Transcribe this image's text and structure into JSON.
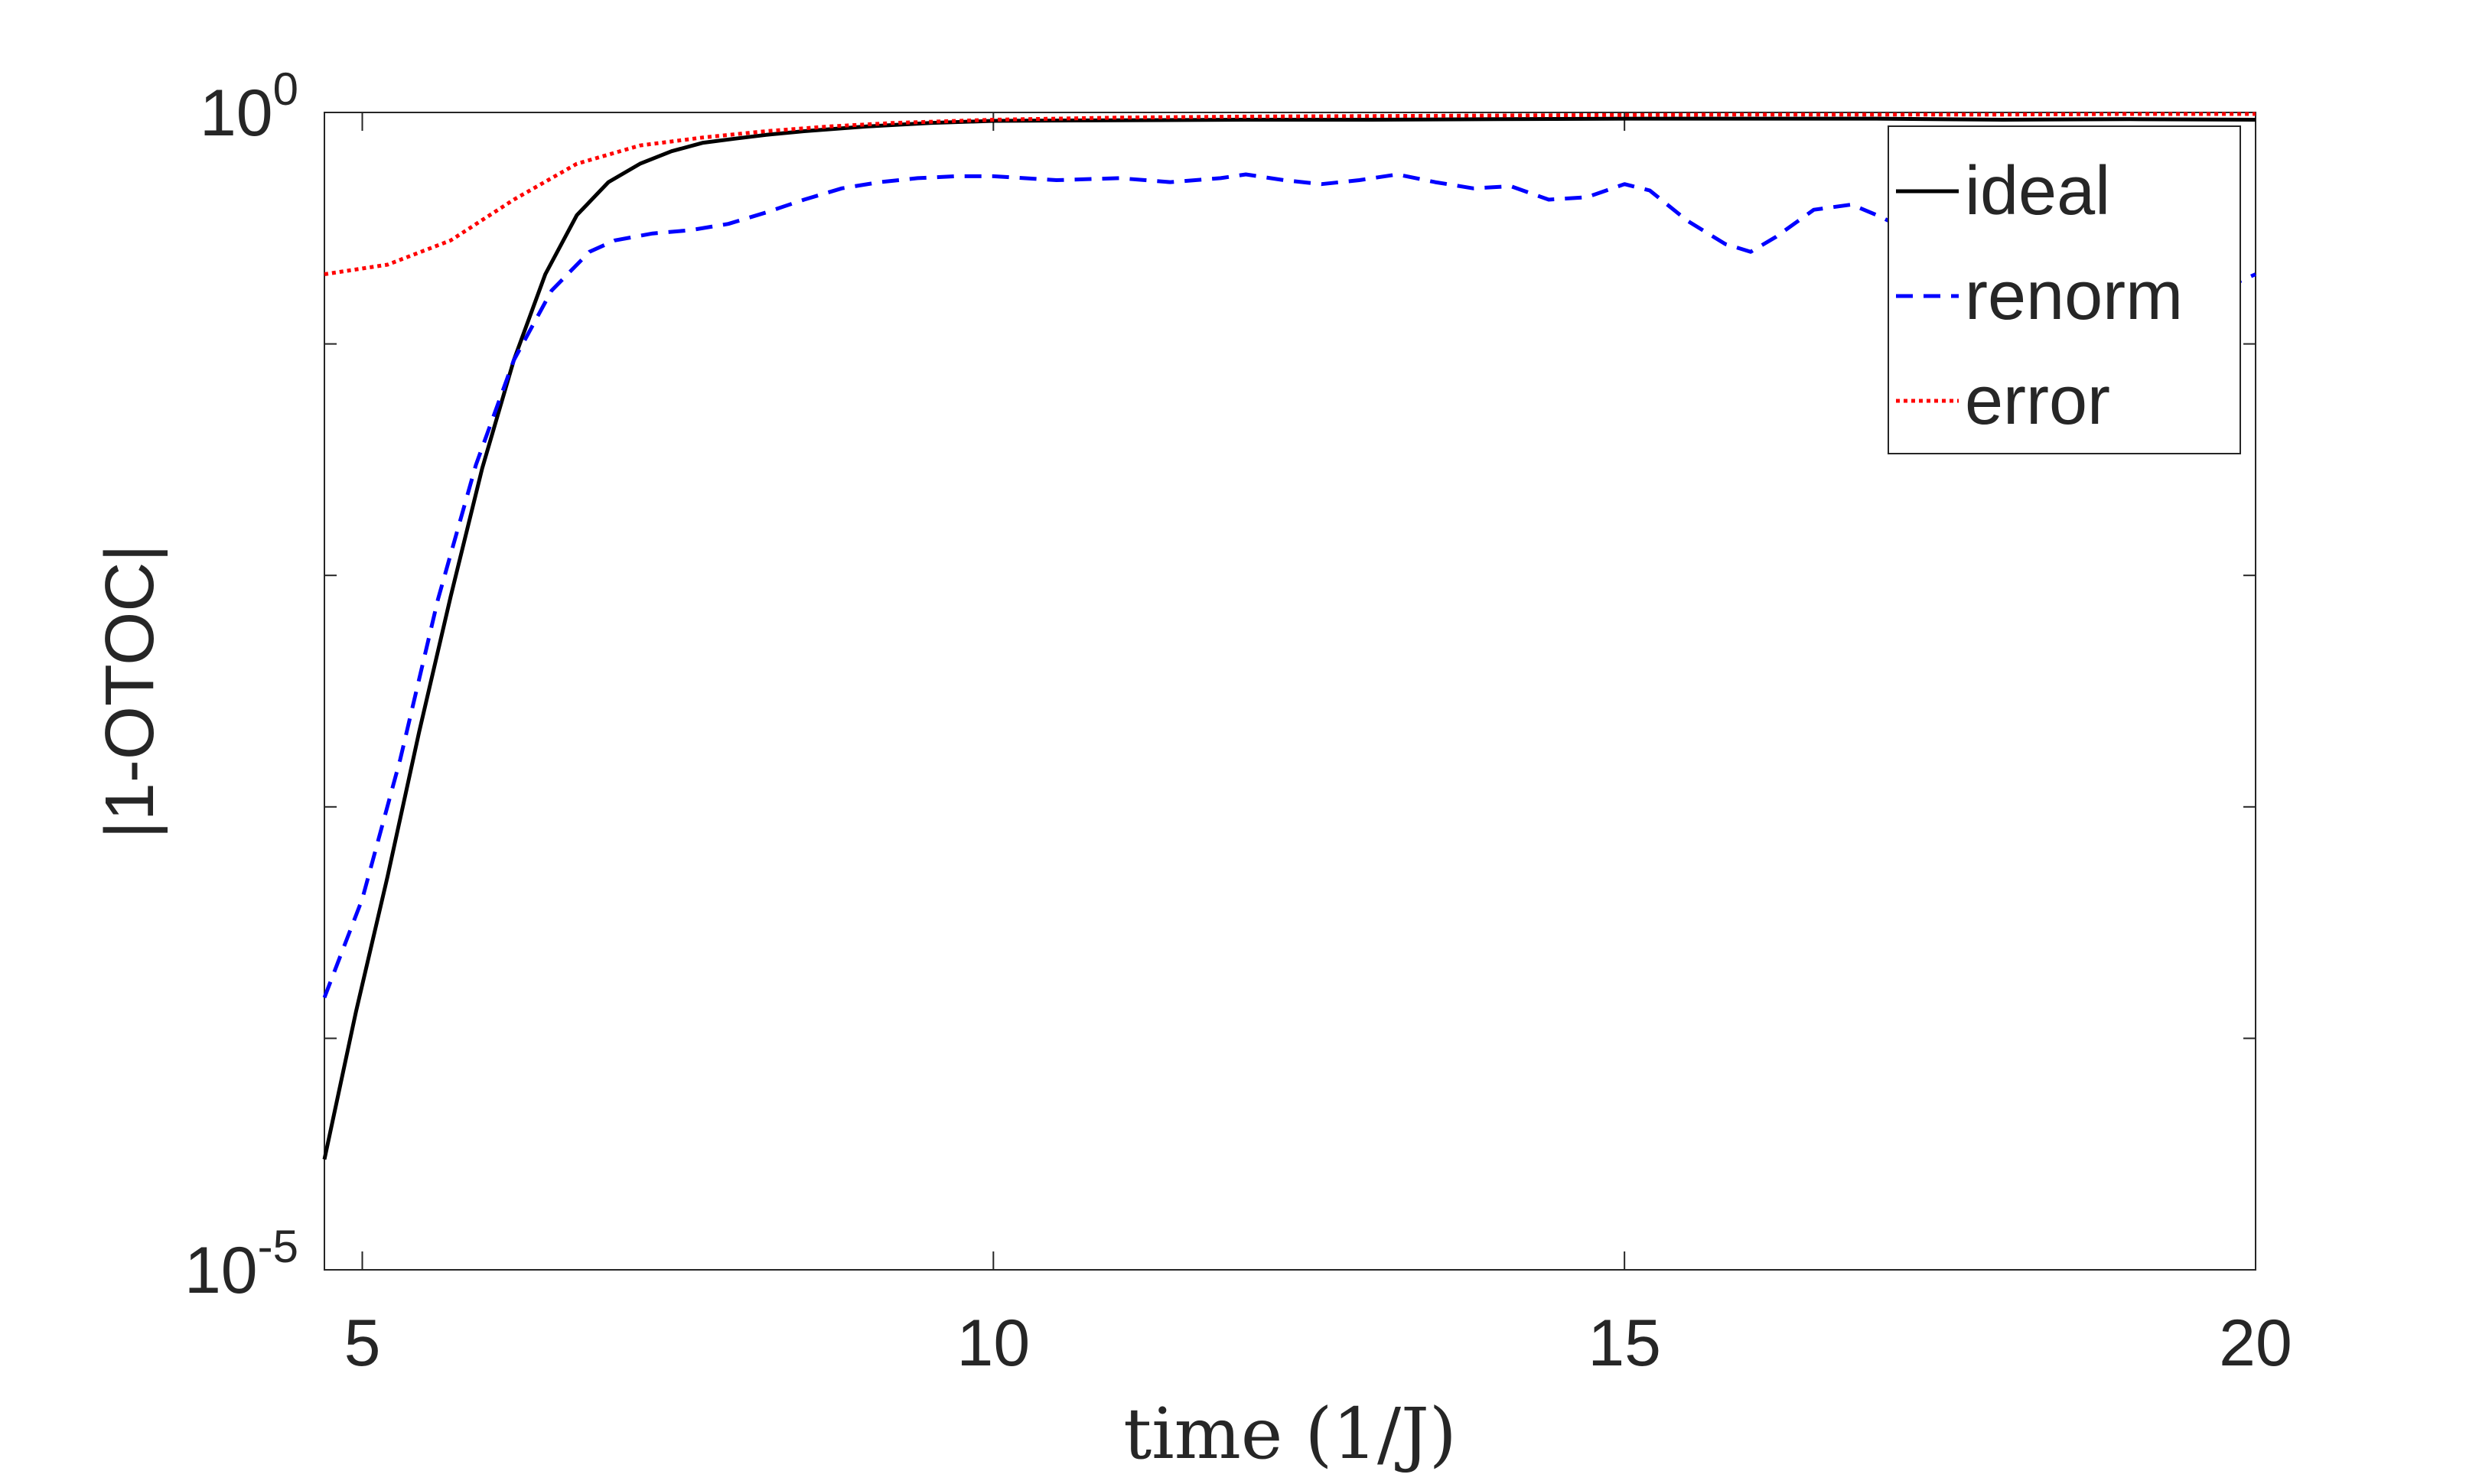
{
  "chart_data": {
    "type": "line",
    "title": "",
    "xlabel": "time (1/J)",
    "ylabel": "|1-OTOC|",
    "y_scale": "log",
    "xlim": [
      4.7,
      20
    ],
    "ylim": [
      1e-05,
      1
    ],
    "x_ticks": [
      5,
      10,
      15,
      20
    ],
    "x_tick_labels": [
      "5",
      "10",
      "15",
      "20"
    ],
    "y_ticks": [
      1e-05,
      1
    ],
    "y_tick_labels": [
      {
        "base": "10",
        "exp": "-5"
      },
      {
        "base": "10",
        "exp": "0"
      }
    ],
    "y_minor_ticks": [
      0.0001,
      0.001,
      0.01,
      0.1
    ],
    "grid": false,
    "legend_position": "top-right",
    "series": [
      {
        "name": "ideal",
        "color": "#000000",
        "line_style": "solid",
        "x": [
          4.7,
          4.95,
          5.2,
          5.45,
          5.7,
          5.95,
          6.2,
          6.45,
          6.7,
          6.95,
          7.2,
          7.45,
          7.7,
          7.95,
          8.2,
          8.5,
          9.0,
          9.5,
          10.0,
          11.0,
          12.0,
          13.0,
          14.0,
          15.0,
          16.0,
          17.0,
          18.0,
          19.0,
          20.0
        ],
        "y": [
          3e-05,
          0.00013,
          0.0005,
          0.0021,
          0.0081,
          0.029,
          0.085,
          0.2,
          0.36,
          0.5,
          0.6,
          0.68,
          0.74,
          0.77,
          0.8,
          0.83,
          0.87,
          0.9,
          0.92,
          0.925,
          0.93,
          0.93,
          0.935,
          0.94,
          0.94,
          0.94,
          0.93,
          0.935,
          0.93
        ]
      },
      {
        "name": "renorm",
        "color": "#0000FF",
        "line_style": "dashed",
        "x": [
          4.7,
          5.0,
          5.3,
          5.6,
          5.9,
          6.2,
          6.5,
          6.8,
          7.0,
          7.3,
          7.6,
          7.9,
          8.2,
          8.5,
          8.8,
          9.1,
          9.4,
          9.7,
          10.0,
          10.5,
          11.0,
          11.4,
          11.8,
          12.0,
          12.3,
          12.6,
          12.9,
          13.2,
          13.5,
          13.8,
          14.1,
          14.4,
          14.7,
          15.0,
          15.2,
          15.5,
          15.8,
          16.0,
          16.2,
          16.5,
          16.8,
          17.0,
          17.3,
          17.6,
          17.9,
          18.2,
          18.5,
          18.8,
          19.0,
          19.3,
          19.6,
          20.0
        ],
        "y": [
          0.00015,
          0.0004,
          0.0016,
          0.0079,
          0.03,
          0.085,
          0.17,
          0.25,
          0.28,
          0.3,
          0.31,
          0.33,
          0.37,
          0.42,
          0.47,
          0.5,
          0.52,
          0.53,
          0.53,
          0.51,
          0.52,
          0.5,
          0.52,
          0.54,
          0.51,
          0.49,
          0.51,
          0.54,
          0.5,
          0.47,
          0.48,
          0.42,
          0.43,
          0.49,
          0.46,
          0.34,
          0.27,
          0.25,
          0.29,
          0.38,
          0.4,
          0.36,
          0.3,
          0.26,
          0.22,
          0.19,
          0.17,
          0.155,
          0.15,
          0.153,
          0.16,
          0.2
        ]
      },
      {
        "name": "error",
        "color": "#FF0000",
        "line_style": "dotted",
        "x": [
          4.7,
          5.2,
          5.7,
          6.2,
          6.7,
          7.2,
          7.7,
          8.2,
          8.7,
          9.2,
          10.0,
          11.0,
          12.0,
          13.0,
          14.0,
          15.0,
          16.0,
          17.0,
          18.0,
          19.0,
          20.0
        ],
        "y": [
          0.2,
          0.22,
          0.28,
          0.42,
          0.6,
          0.72,
          0.78,
          0.83,
          0.87,
          0.9,
          0.93,
          0.95,
          0.96,
          0.965,
          0.97,
          0.975,
          0.98,
          0.98,
          0.98,
          0.985,
          0.985
        ]
      }
    ]
  }
}
